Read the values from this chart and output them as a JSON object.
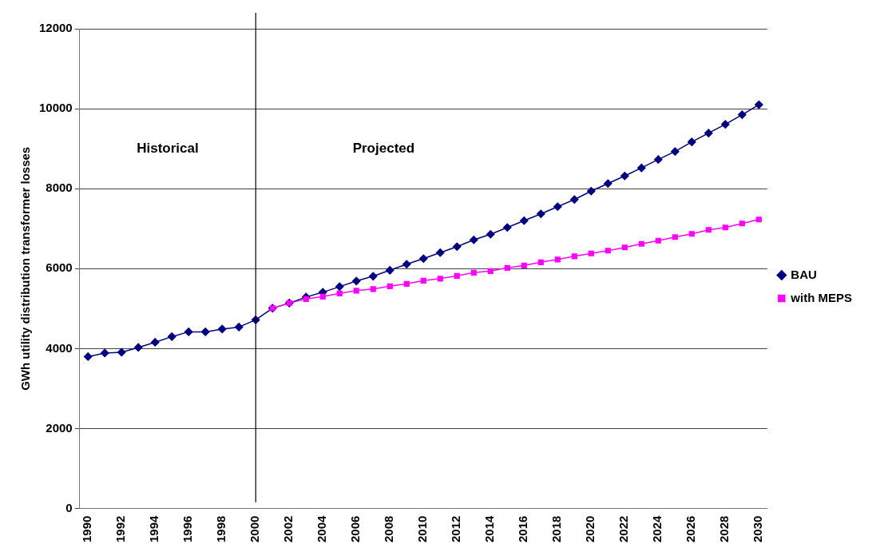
{
  "chart_data": {
    "type": "line",
    "ylabel": "GWh utility distribution transformer losses",
    "categories": [
      "1990",
      null,
      "1992",
      null,
      "1994",
      null,
      "1996",
      null,
      "1998",
      null,
      "2000",
      null,
      "2002",
      null,
      "2004",
      null,
      "2006",
      null,
      "2008",
      null,
      "2010",
      null,
      "2012",
      null,
      "2014",
      null,
      "2016",
      null,
      "2018",
      null,
      "2020",
      null,
      "2022",
      null,
      "2024",
      null,
      "2026",
      null,
      "2028",
      null,
      "2030"
    ],
    "series": [
      {
        "name": "BAU",
        "color": "#000080",
        "marker": "diamond",
        "values": [
          3800,
          3890,
          3910,
          4030,
          4160,
          4300,
          4420,
          4420,
          4490,
          4540,
          4720,
          5010,
          5140,
          5290,
          5410,
          5550,
          5690,
          5810,
          5960,
          6110,
          6250,
          6400,
          6550,
          6720,
          6860,
          7030,
          7200,
          7370,
          7550,
          7730,
          7940,
          8130,
          8320,
          8520,
          8730,
          8930,
          9170,
          9390,
          9610,
          9850,
          10100
        ]
      },
      {
        "name": "with MEPS",
        "color": "#ff00ff",
        "marker": "square",
        "values": [
          null,
          null,
          null,
          null,
          null,
          null,
          null,
          null,
          null,
          null,
          null,
          5010,
          5140,
          5240,
          5300,
          5380,
          5450,
          5490,
          5560,
          5620,
          5700,
          5750,
          5820,
          5900,
          5940,
          6020,
          6080,
          6160,
          6230,
          6310,
          6380,
          6450,
          6530,
          6620,
          6700,
          6790,
          6870,
          6970,
          7030,
          7130,
          7230
        ]
      }
    ],
    "ylim": [
      0,
      12000
    ],
    "yticks": [
      0,
      2000,
      4000,
      6000,
      8000,
      10000,
      12000
    ],
    "grid": "y",
    "legend": "right",
    "line_style": "solid",
    "ref_lines": [
      {
        "axis": "x",
        "value": "2000",
        "color": "#000000"
      }
    ],
    "annotations": [
      "Historical",
      "Projected"
    ]
  }
}
